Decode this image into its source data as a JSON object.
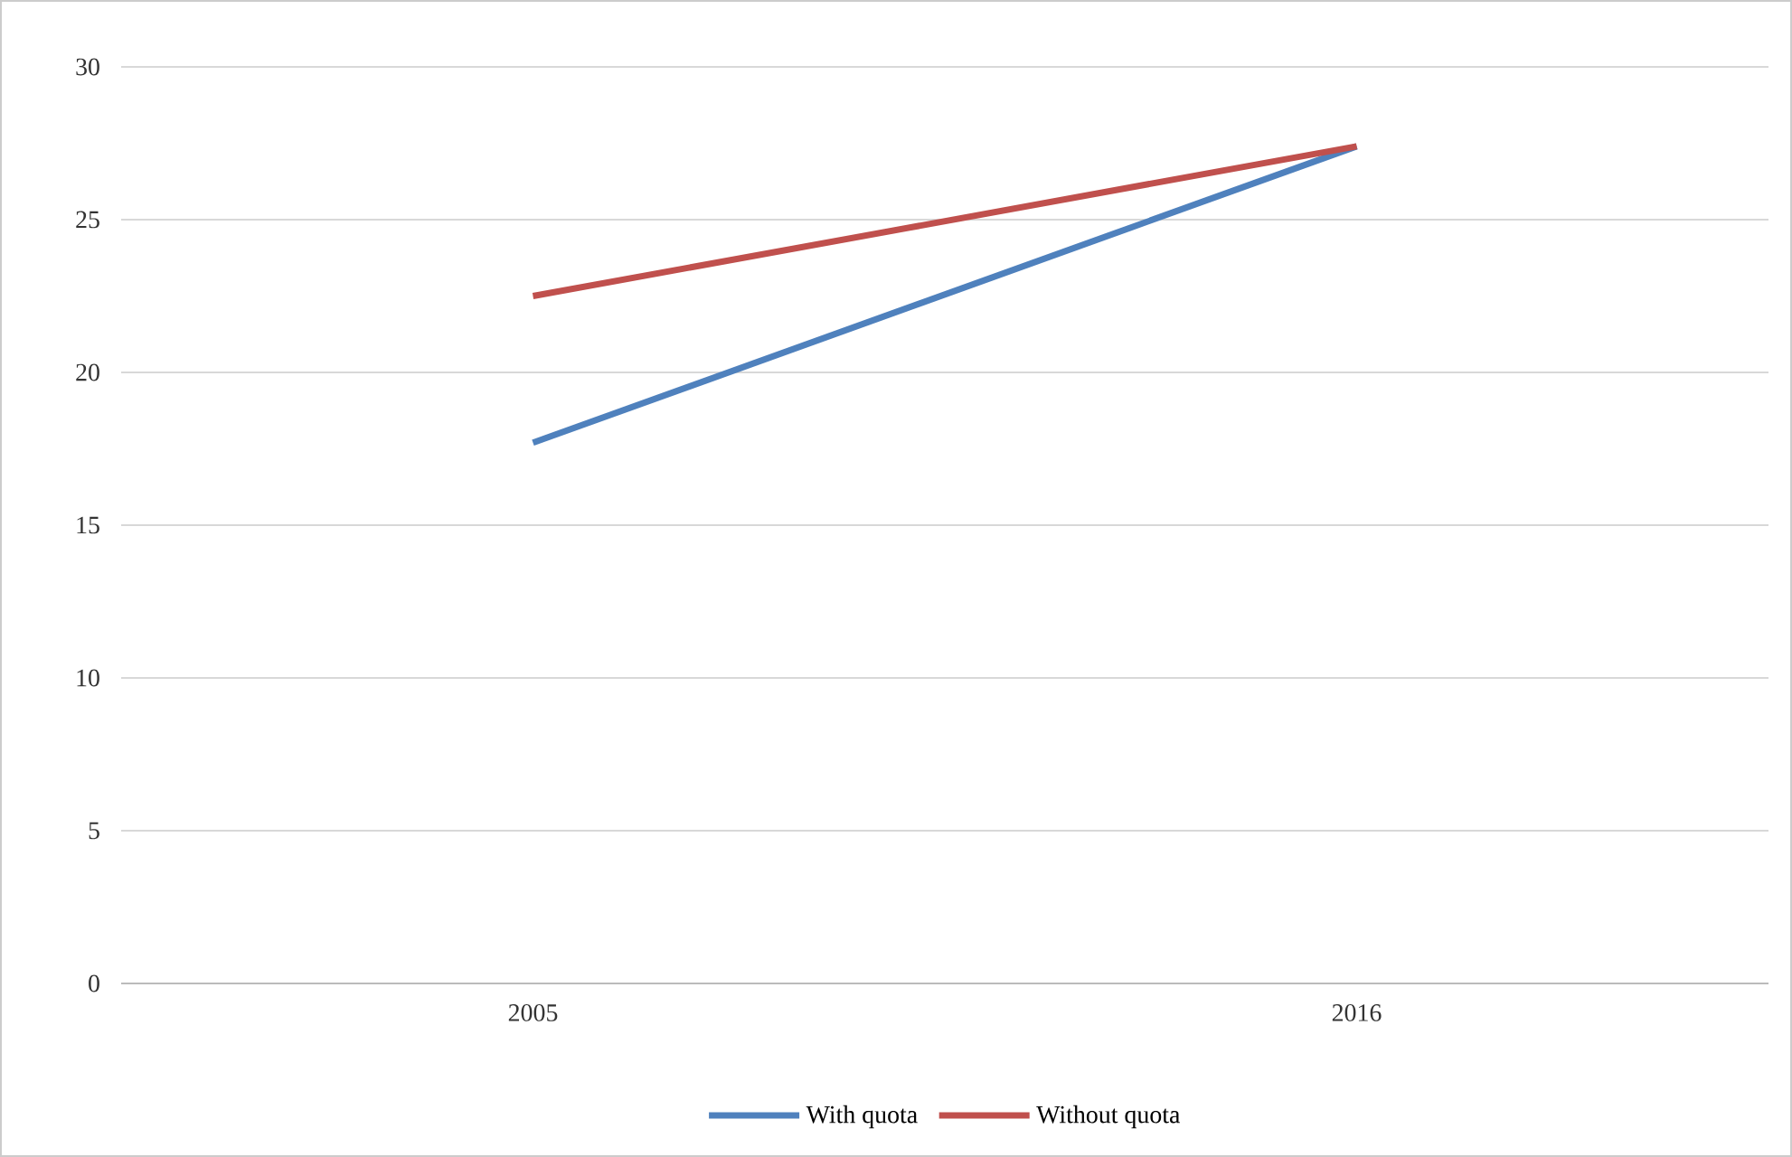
{
  "chart_data": {
    "type": "line",
    "categories": [
      "2005",
      "2016"
    ],
    "series": [
      {
        "name": "With quota",
        "color": "#4f81bd",
        "values": [
          17.7,
          27.4
        ]
      },
      {
        "name": "Without quota",
        "color": "#c0504d",
        "values": [
          22.5,
          27.4
        ]
      }
    ],
    "ylim": [
      0,
      30
    ],
    "yticks": [
      0,
      5,
      10,
      15,
      20,
      25,
      30
    ],
    "grid": "y",
    "legend": "bottom",
    "marker": "none"
  }
}
